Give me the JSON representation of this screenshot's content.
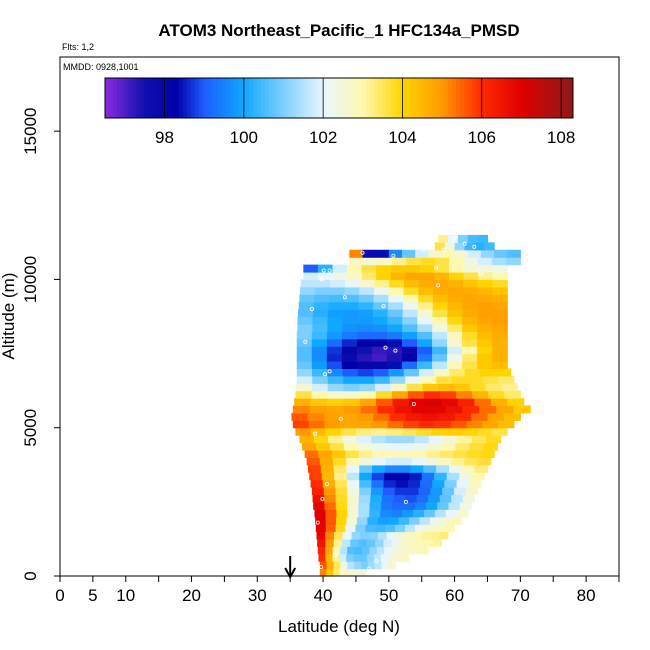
{
  "chart_data": {
    "type": "heatmap",
    "title": "ATOM3 Northeast_Pacific_1 HFC134a_PMSD",
    "flights_note": "Flts: 1,2",
    "dates_note": "MMDD: 0928,1001",
    "xlabel": "Latitude (deg N)",
    "ylabel": "Altitude (m)",
    "xlim": [
      0,
      85
    ],
    "ylim": [
      0,
      17500
    ],
    "x_tick_labels": [
      "0",
      "5",
      "10",
      "20",
      "30",
      "40",
      "50",
      "60",
      "70",
      "80"
    ],
    "x_tick_values": [
      0,
      5,
      10,
      20,
      30,
      40,
      50,
      60,
      70,
      80
    ],
    "x_minor_ticks": [
      15,
      25,
      35,
      45,
      55,
      65,
      75,
      85
    ],
    "y_tick_labels": [
      "0",
      "5000",
      "10000",
      "15000"
    ],
    "y_tick_values": [
      0,
      5000,
      10000,
      15000
    ],
    "colorbar": {
      "min": 96.5,
      "max": 108.3,
      "tick_labels": [
        "98",
        "100",
        "102",
        "104",
        "106",
        "108"
      ],
      "tick_values": [
        98,
        100,
        102,
        104,
        106,
        108
      ],
      "colors": [
        {
          "v": 96.5,
          "c": "#8a2be2"
        },
        {
          "v": 97.5,
          "c": "#1010b0"
        },
        {
          "v": 98.3,
          "c": "#0000a8"
        },
        {
          "v": 99.0,
          "c": "#1e5cff"
        },
        {
          "v": 100.0,
          "c": "#10a8ff"
        },
        {
          "v": 101.0,
          "c": "#7ccfff"
        },
        {
          "v": 102.0,
          "c": "#e8f6ff"
        },
        {
          "v": 103.0,
          "c": "#fff8b0"
        },
        {
          "v": 104.0,
          "c": "#ffd400"
        },
        {
          "v": 105.0,
          "c": "#ff9a00"
        },
        {
          "v": 106.0,
          "c": "#ff2a00"
        },
        {
          "v": 107.0,
          "c": "#e00000"
        },
        {
          "v": 108.3,
          "c": "#8b1a1a"
        }
      ]
    },
    "marker_latitude": 35,
    "profiles": [
      {
        "alt": 0,
        "lat_start": 39.5,
        "lat_end": 46.5,
        "values": [
          105.2,
          104.3,
          103.4,
          102.8,
          102.6,
          102.5,
          102.4
        ]
      },
      {
        "alt": 250,
        "lat_start": 39.5,
        "lat_end": 51,
        "values": [
          105.6,
          104.6,
          103.5,
          102.2,
          101.5,
          101.2,
          101.0,
          101.3,
          101.6,
          102.2,
          102.6
        ]
      },
      {
        "alt": 500,
        "lat_start": 39.3,
        "lat_end": 53,
        "values": [
          106.0,
          104.5,
          103.2,
          101.8,
          101.0,
          100.8,
          100.8,
          101.2,
          101.6,
          102.0,
          102.4,
          102.6,
          102.8
        ]
      },
      {
        "alt": 750,
        "lat_start": 39.2,
        "lat_end": 56,
        "values": [
          106.2,
          104.8,
          103.0,
          101.5,
          100.6,
          100.5,
          100.7,
          101.2,
          101.6,
          102.0,
          102.4,
          102.6,
          102.7,
          102.8,
          102.9
        ]
      },
      {
        "alt": 1000,
        "lat_start": 39.1,
        "lat_end": 58,
        "values": [
          106.5,
          105.0,
          103.2,
          101.6,
          100.8,
          100.6,
          100.8,
          101.2,
          101.8,
          102.2,
          102.6,
          102.8,
          102.9,
          103.0,
          103.1
        ]
      },
      {
        "alt": 1250,
        "lat_start": 39,
        "lat_end": 59,
        "values": [
          106.8,
          105.2,
          103.5,
          102.0,
          101.2,
          101.0,
          101.1,
          101.5,
          102.0,
          102.4,
          102.8,
          103.0,
          103.1,
          103.2,
          103.3
        ]
      },
      {
        "alt": 1500,
        "lat_start": 38.9,
        "lat_end": 60,
        "values": [
          106.9,
          105.5,
          103.8,
          102.2,
          101.0,
          100.5,
          100.4,
          100.6,
          101.0,
          101.6,
          102.2,
          102.6,
          102.8,
          103.0
        ]
      },
      {
        "alt": 1750,
        "lat_start": 38.8,
        "lat_end": 61,
        "values": [
          107.0,
          105.6,
          104.0,
          102.5,
          101.2,
          100.2,
          99.9,
          100.0,
          100.4,
          101.0,
          101.6,
          102.2,
          102.6,
          102.9
        ]
      },
      {
        "alt": 2000,
        "lat_start": 38.7,
        "lat_end": 62,
        "values": [
          107.0,
          105.6,
          104.0,
          102.6,
          101.4,
          100.3,
          99.6,
          99.5,
          99.8,
          100.2,
          100.8,
          101.5,
          102.1,
          102.6
        ]
      },
      {
        "alt": 2250,
        "lat_start": 38.5,
        "lat_end": 62.5,
        "values": [
          106.8,
          105.4,
          103.9,
          102.6,
          101.4,
          100.2,
          99.4,
          99.2,
          99.2,
          99.5,
          100.0,
          100.8,
          101.6,
          102.3
        ]
      },
      {
        "alt": 2500,
        "lat_start": 38.4,
        "lat_end": 63,
        "values": [
          106.6,
          105.2,
          103.8,
          102.6,
          101.3,
          100.1,
          99.3,
          99.0,
          98.9,
          99.2,
          99.8,
          100.7,
          101.6,
          102.4
        ]
      },
      {
        "alt": 2750,
        "lat_start": 38.3,
        "lat_end": 63.5,
        "values": [
          106.2,
          105.0,
          103.7,
          102.4,
          101.0,
          99.8,
          99.0,
          98.7,
          98.7,
          99.1,
          99.8,
          100.8,
          101.8,
          102.6
        ]
      },
      {
        "alt": 3000,
        "lat_start": 38.1,
        "lat_end": 64,
        "values": [
          106.0,
          104.7,
          103.5,
          102.0,
          100.5,
          99.3,
          98.6,
          98.4,
          98.6,
          99.2,
          100.0,
          101.0,
          102.0,
          102.8
        ]
      },
      {
        "alt": 3250,
        "lat_start": 37.9,
        "lat_end": 64.5,
        "values": [
          105.8,
          104.5,
          103.2,
          101.6,
          100.0,
          98.8,
          98.2,
          98.2,
          98.5,
          99.3,
          100.3,
          101.4,
          102.4,
          103.0
        ]
      },
      {
        "alt": 3500,
        "lat_start": 37.7,
        "lat_end": 65,
        "values": [
          105.8,
          104.6,
          103.4,
          102.0,
          100.8,
          100.0,
          99.6,
          99.6,
          100.0,
          100.6,
          101.4,
          102.2,
          102.9,
          103.3
        ]
      },
      {
        "alt": 3750,
        "lat_start": 37.5,
        "lat_end": 65.5,
        "values": [
          105.6,
          104.7,
          103.8,
          103.0,
          102.4,
          102.0,
          101.8,
          101.8,
          102.0,
          102.4,
          102.8,
          103.2,
          103.5,
          103.7
        ]
      },
      {
        "alt": 4000,
        "lat_start": 37.2,
        "lat_end": 66,
        "values": [
          105.4,
          104.8,
          104.2,
          103.6,
          103.2,
          103.0,
          102.9,
          102.9,
          103.0,
          103.2,
          103.4,
          103.6,
          103.8,
          103.9
        ]
      },
      {
        "alt": 4250,
        "lat_start": 36.8,
        "lat_end": 66.5,
        "values": [
          104.8,
          104.2,
          103.6,
          103.0,
          102.5,
          102.2,
          102.0,
          102.0,
          102.2,
          102.6,
          103.0,
          103.4,
          103.7,
          103.9
        ]
      },
      {
        "alt": 4500,
        "lat_start": 36.4,
        "lat_end": 67,
        "values": [
          104.6,
          103.9,
          103.2,
          102.5,
          101.9,
          101.5,
          101.3,
          101.3,
          101.6,
          102.0,
          102.6,
          103.1,
          103.5,
          103.8
        ]
      },
      {
        "alt": 4750,
        "lat_start": 35.8,
        "lat_end": 68,
        "values": [
          105.0,
          104.5,
          104.0,
          103.6,
          103.3,
          103.2,
          103.3,
          103.5,
          103.8,
          104.0,
          104.1,
          104.0,
          103.8,
          103.6
        ]
      },
      {
        "alt": 5000,
        "lat_start": 35.4,
        "lat_end": 69,
        "values": [
          105.8,
          105.4,
          105.0,
          104.8,
          104.8,
          105.0,
          105.4,
          105.8,
          106.0,
          105.9,
          105.6,
          105.2,
          104.8,
          104.4
        ]
      },
      {
        "alt": 5250,
        "lat_start": 35.2,
        "lat_end": 70,
        "values": [
          105.6,
          105.2,
          104.9,
          104.8,
          105.0,
          105.4,
          106.0,
          106.4,
          106.6,
          106.4,
          106.0,
          105.4,
          104.8,
          104.4
        ]
      },
      {
        "alt": 5500,
        "lat_start": 35.4,
        "lat_end": 71.5,
        "values": [
          105.2,
          104.9,
          104.8,
          105.0,
          105.4,
          106.0,
          106.6,
          106.9,
          106.9,
          106.6,
          106.0,
          105.4,
          104.8,
          104.2
        ]
      },
      {
        "alt": 5750,
        "lat_start": 35.6,
        "lat_end": 70.5,
        "values": [
          104.6,
          104.2,
          104.0,
          104.2,
          104.8,
          105.6,
          106.4,
          107.0,
          107.1,
          106.8,
          106.2,
          105.4,
          104.6,
          104.0
        ]
      },
      {
        "alt": 6000,
        "lat_start": 35.8,
        "lat_end": 70,
        "values": [
          103.6,
          103.0,
          102.6,
          102.6,
          103.0,
          103.8,
          104.8,
          105.6,
          106.0,
          105.8,
          105.2,
          104.5,
          103.8,
          103.4
        ]
      },
      {
        "alt": 6250,
        "lat_start": 35.9,
        "lat_end": 69.5,
        "values": [
          102.6,
          101.8,
          101.2,
          101.0,
          101.2,
          101.8,
          102.8,
          103.6,
          104.2,
          104.4,
          104.2,
          103.8,
          103.4,
          103.2
        ]
      },
      {
        "alt": 6500,
        "lat_start": 36,
        "lat_end": 69,
        "values": [
          101.8,
          101.0,
          100.4,
          100.0,
          100.0,
          100.4,
          101.2,
          102.2,
          103.0,
          103.6,
          103.8,
          103.8,
          103.6,
          103.4
        ]
      },
      {
        "alt": 6750,
        "lat_start": 36,
        "lat_end": 68.5,
        "values": [
          101.2,
          100.4,
          99.6,
          99.0,
          98.8,
          99.0,
          99.8,
          100.8,
          101.8,
          102.8,
          103.4,
          103.8,
          104.0,
          104.0
        ]
      },
      {
        "alt": 7000,
        "lat_start": 36,
        "lat_end": 68,
        "values": [
          100.8,
          99.8,
          98.9,
          98.3,
          98.0,
          98.0,
          98.4,
          99.2,
          100.4,
          101.6,
          102.8,
          103.6,
          104.2,
          104.4
        ]
      },
      {
        "alt": 7250,
        "lat_start": 36,
        "lat_end": 68,
        "values": [
          100.6,
          99.6,
          98.6,
          97.8,
          97.3,
          97.1,
          97.4,
          98.2,
          99.4,
          100.8,
          102.2,
          103.4,
          104.2,
          104.6
        ]
      },
      {
        "alt": 7500,
        "lat_start": 36,
        "lat_end": 68,
        "values": [
          100.6,
          99.6,
          98.7,
          98.0,
          97.5,
          97.2,
          97.3,
          97.9,
          99.0,
          100.4,
          101.8,
          103.0,
          104.0,
          104.6
        ]
      },
      {
        "alt": 7750,
        "lat_start": 36,
        "lat_end": 68,
        "values": [
          100.8,
          100.0,
          99.2,
          98.6,
          98.3,
          98.2,
          98.4,
          99.0,
          100.0,
          101.2,
          102.6,
          103.6,
          104.2,
          104.6
        ]
      },
      {
        "alt": 8000,
        "lat_start": 36,
        "lat_end": 68,
        "values": [
          101.0,
          100.4,
          99.8,
          99.4,
          99.2,
          99.2,
          99.4,
          99.9,
          100.6,
          101.6,
          102.8,
          103.8,
          104.4,
          104.7
        ]
      },
      {
        "alt": 8250,
        "lat_start": 36.1,
        "lat_end": 68,
        "values": [
          101.0,
          100.5,
          100.0,
          99.7,
          99.6,
          99.7,
          100.0,
          100.6,
          101.4,
          102.4,
          103.4,
          104.2,
          104.6,
          104.8
        ]
      },
      {
        "alt": 8500,
        "lat_start": 36.1,
        "lat_end": 68,
        "values": [
          100.8,
          100.4,
          100.0,
          99.8,
          99.8,
          100.0,
          100.4,
          101.1,
          102.0,
          103.0,
          103.9,
          104.5,
          104.8,
          104.9
        ]
      },
      {
        "alt": 8750,
        "lat_start": 36.2,
        "lat_end": 68,
        "values": [
          100.6,
          100.2,
          99.9,
          99.8,
          99.9,
          100.2,
          100.8,
          101.6,
          102.6,
          103.6,
          104.3,
          104.7,
          104.9,
          104.9
        ]
      },
      {
        "alt": 9000,
        "lat_start": 36.3,
        "lat_end": 68,
        "values": [
          100.6,
          100.3,
          100.1,
          100.1,
          100.3,
          100.8,
          101.4,
          102.2,
          103.2,
          104.0,
          104.5,
          104.8,
          104.9,
          104.8
        ]
      },
      {
        "alt": 9250,
        "lat_start": 36.4,
        "lat_end": 68,
        "values": [
          100.8,
          100.6,
          100.5,
          100.6,
          100.9,
          101.4,
          102.1,
          103.0,
          103.8,
          104.4,
          104.7,
          104.8,
          104.7,
          104.6
        ]
      },
      {
        "alt": 9500,
        "lat_start": 36.5,
        "lat_end": 68,
        "values": [
          101.2,
          101.0,
          101.0,
          101.2,
          101.6,
          102.2,
          103.0,
          103.8,
          104.4,
          104.7,
          104.8,
          104.7,
          104.5,
          104.3
        ]
      },
      {
        "alt": 9750,
        "lat_start": 36.6,
        "lat_end": 68,
        "values": [
          101.6,
          101.6,
          101.8,
          102.1,
          102.6,
          103.2,
          103.8,
          104.4,
          104.7,
          104.8,
          104.6,
          104.3,
          104.0,
          103.8
        ]
      },
      {
        "alt": 10000,
        "lat_start": 37,
        "lat_end": 68,
        "values": [
          101.8,
          102.0,
          102.4,
          102.8,
          103.4,
          104.0,
          104.5,
          104.8,
          104.8,
          104.5,
          104.0,
          103.6,
          103.2,
          103.0
        ]
      },
      {
        "alt": 10250,
        "lat_start": 37,
        "lat_end": 68,
        "values": [
          99.0,
          100.2,
          101.8,
          103.0,
          103.6,
          104.0,
          104.2,
          104.2,
          104.0,
          103.6,
          103.0,
          102.6,
          102.4,
          102.3
        ]
      },
      {
        "alt": 10500,
        "lat_start": 44,
        "lat_end": 70,
        "values": [
          102.8,
          102.6,
          102.8,
          103.2,
          103.6,
          103.8,
          103.6,
          103.0,
          102.4,
          101.8,
          101.4,
          101.2
        ]
      },
      {
        "alt": 10750,
        "lat_start": 44,
        "lat_end": 70,
        "values": [
          105.2,
          97.8,
          98.4,
          99.6,
          100.8,
          101.8,
          102.6,
          103.0,
          102.6,
          101.8,
          101.2,
          100.8,
          100.6
        ]
      },
      {
        "alt": 11000,
        "lat_start": 57,
        "lat_end": 66,
        "values": [
          103.6,
          102.4,
          101.2,
          100.4,
          100.2,
          100.4
        ]
      },
      {
        "alt": 11250,
        "lat_start": 57.5,
        "lat_end": 65,
        "values": [
          103.2,
          102.0,
          101.0,
          100.5,
          100.4
        ]
      }
    ],
    "sample_points": [
      [
        39.7,
        300
      ],
      [
        41.8,
        700
      ],
      [
        39.2,
        1800
      ],
      [
        39.9,
        2600
      ],
      [
        40.6,
        3100
      ],
      [
        52.6,
        2500
      ],
      [
        38.8,
        4800
      ],
      [
        42.7,
        5300
      ],
      [
        53.8,
        5800
      ],
      [
        41.0,
        6900
      ],
      [
        40.3,
        6800
      ],
      [
        49.5,
        7700
      ],
      [
        51.0,
        7600
      ],
      [
        37.3,
        7900
      ],
      [
        38.3,
        9000
      ],
      [
        43.3,
        9400
      ],
      [
        49.2,
        9100
      ],
      [
        57.5,
        9800
      ],
      [
        39.8,
        10000
      ],
      [
        41.0,
        10300
      ],
      [
        40.1,
        10300
      ],
      [
        46.0,
        10900
      ],
      [
        50.7,
        10800
      ],
      [
        58.3,
        11000
      ],
      [
        61.5,
        11200
      ],
      [
        63.0,
        11100
      ],
      [
        64.0,
        10200
      ],
      [
        57.2,
        10400
      ],
      [
        48.1,
        500
      ],
      [
        47.0,
        250
      ],
      [
        60.0,
        11400
      ],
      [
        55.3,
        11000
      ]
    ]
  }
}
